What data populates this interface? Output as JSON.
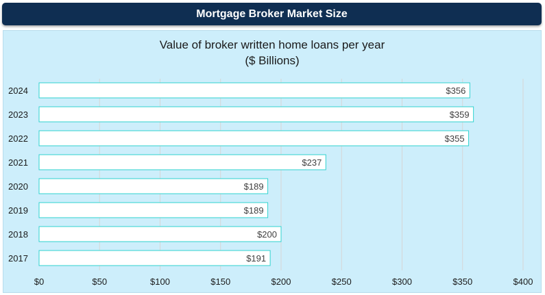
{
  "header": {
    "title": "Mortgage Broker Market Size"
  },
  "chart_data": {
    "type": "bar",
    "orientation": "horizontal",
    "title": "Value of broker written home loans per year",
    "subtitle": "($ Billions)",
    "categories": [
      "2024",
      "2023",
      "2022",
      "2021",
      "2020",
      "2019",
      "2018",
      "2017"
    ],
    "values": [
      356,
      359,
      355,
      237,
      189,
      189,
      200,
      191
    ],
    "data_labels": [
      "$356",
      "$359",
      "$355",
      "$237",
      "$189",
      "$189",
      "$200",
      "$191"
    ],
    "x_ticks": [
      0,
      50,
      100,
      150,
      200,
      250,
      300,
      350,
      400
    ],
    "x_tick_labels": [
      "$0",
      "$50",
      "$100",
      "$150",
      "$200",
      "$250",
      "$300",
      "$350",
      "$400"
    ],
    "xlim": [
      0,
      400
    ],
    "grid": true,
    "legend": "none",
    "colors": {
      "bar_fill": "#ffffff",
      "bar_stroke": "#2fd3cf",
      "grid": "#d6d6d6",
      "header_bg": "#0f2e52",
      "panel_bg": "#cdeefb"
    }
  }
}
